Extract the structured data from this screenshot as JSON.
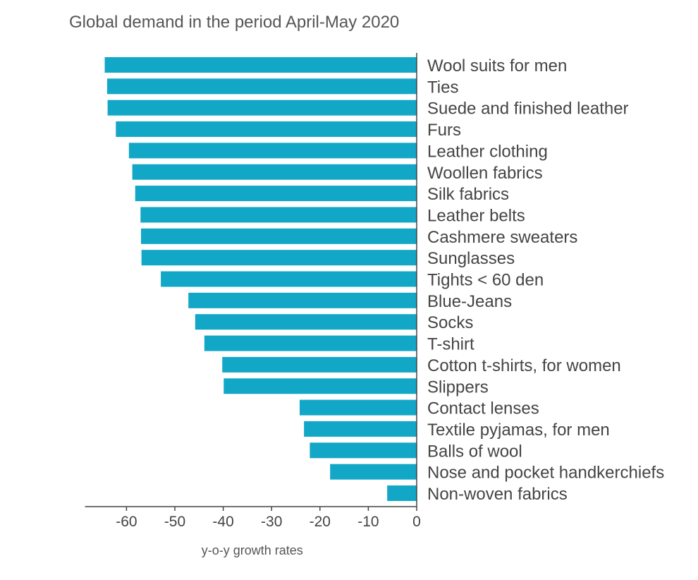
{
  "chart_data": {
    "type": "bar",
    "orientation": "horizontal",
    "title": "Global demand in the period April-May 2020",
    "xlabel": "y-o-y growth rates",
    "ylabel": "",
    "xlim": [
      -68,
      0
    ],
    "xticks": [
      -60,
      -50,
      -40,
      -30,
      -20,
      -10,
      0
    ],
    "grid": false,
    "legend": "none",
    "bar_color": "#12a7c6",
    "categories": [
      "Wool suits for men",
      "Ties",
      "Suede and finished leather",
      "Furs",
      "Leather clothing",
      "Woollen fabrics",
      "Silk fabrics",
      "Leather belts",
      "Cashmere sweaters",
      "Sunglasses",
      "Tights < 60 den",
      "Blue-Jeans",
      "Socks",
      "T-shirt",
      "Cotton t-shirts, for women",
      "Slippers",
      "Contact lenses",
      "Textile pyjamas, for men",
      "Balls of wool",
      "Nose and pocket handkerchiefs",
      "Non-woven fabrics"
    ],
    "values": [
      -64.5,
      -64,
      -63.9,
      -62.2,
      -59.5,
      -58.8,
      -58.2,
      -57.1,
      -57,
      -56.9,
      -52.9,
      -47.2,
      -45.8,
      -43.9,
      -40.2,
      -39.9,
      -24.2,
      -23.3,
      -22.1,
      -17.9,
      -6.1
    ]
  }
}
